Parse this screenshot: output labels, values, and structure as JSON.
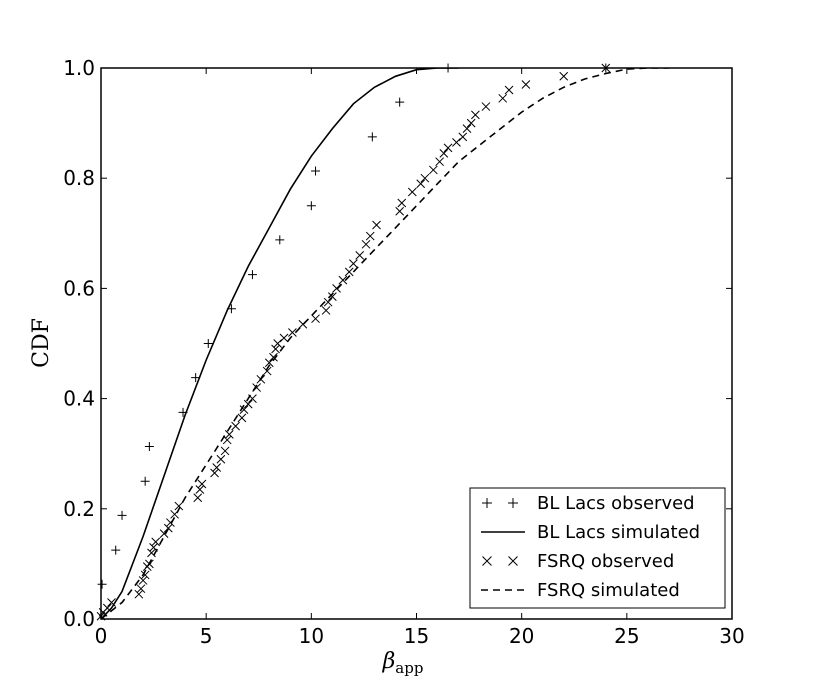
{
  "chart_data": {
    "type": "line",
    "title": "",
    "xlabel": "β",
    "xlabel_sub": "app",
    "ylabel": "CDF",
    "xlim": [
      0,
      30
    ],
    "ylim": [
      0,
      1
    ],
    "x_ticks": [
      0,
      5,
      10,
      15,
      20,
      25,
      30
    ],
    "y_ticks": [
      0.0,
      0.2,
      0.4,
      0.6,
      0.8,
      1.0
    ],
    "x_tick_labels": [
      "0",
      "5",
      "10",
      "15",
      "20",
      "25",
      "30"
    ],
    "y_tick_labels": [
      "0.0",
      "0.2",
      "0.4",
      "0.6",
      "0.8",
      "1.0"
    ],
    "grid": false,
    "legend_position": "bottom-right",
    "series": [
      {
        "name": "BL Lacs observed",
        "style": "plus-markers",
        "x": [
          0.05,
          0.7,
          1.0,
          2.1,
          2.3,
          3.9,
          4.5,
          5.1,
          6.2,
          7.2,
          8.5,
          10.0,
          10.2,
          12.9,
          14.2,
          16.5,
          24.0
        ],
        "y": [
          0.063,
          0.125,
          0.188,
          0.25,
          0.313,
          0.375,
          0.438,
          0.5,
          0.563,
          0.625,
          0.688,
          0.75,
          0.813,
          0.875,
          0.938,
          1.0,
          1.0
        ]
      },
      {
        "name": "BL Lacs simulated",
        "style": "solid",
        "x": [
          0,
          0.5,
          1,
          1.5,
          2,
          3,
          4,
          5,
          6,
          7,
          8,
          9,
          10,
          11,
          12,
          13,
          14,
          15,
          16,
          17
        ],
        "y": [
          0.0,
          0.02,
          0.05,
          0.1,
          0.15,
          0.26,
          0.37,
          0.47,
          0.56,
          0.64,
          0.71,
          0.78,
          0.84,
          0.89,
          0.935,
          0.965,
          0.985,
          0.997,
          1.0,
          1.0
        ]
      },
      {
        "name": "FSRQ observed",
        "style": "x-markers",
        "x": [
          0.0,
          0.1,
          0.3,
          0.5,
          1.8,
          1.9,
          2.0,
          2.1,
          2.2,
          2.3,
          2.4,
          2.5,
          2.6,
          3.0,
          3.2,
          3.3,
          3.5,
          3.7,
          4.6,
          4.7,
          4.8,
          5.4,
          5.5,
          5.7,
          5.9,
          6.0,
          6.1,
          6.4,
          6.7,
          6.8,
          7.0,
          7.2,
          7.4,
          7.6,
          7.9,
          8.0,
          8.2,
          8.3,
          8.4,
          8.7,
          9.1,
          9.6,
          10.2,
          10.7,
          10.8,
          11.0,
          11.2,
          11.5,
          11.8,
          12.0,
          12.3,
          12.6,
          12.8,
          13.1,
          14.2,
          14.3,
          14.8,
          15.2,
          15.4,
          15.8,
          16.1,
          16.3,
          16.5,
          16.9,
          17.2,
          17.4,
          17.6,
          17.8,
          18.3,
          19.1,
          19.4,
          20.2,
          22.0,
          24.0
        ],
        "y": [
          0.005,
          0.012,
          0.02,
          0.03,
          0.045,
          0.055,
          0.07,
          0.08,
          0.095,
          0.1,
          0.12,
          0.13,
          0.14,
          0.155,
          0.165,
          0.175,
          0.19,
          0.205,
          0.22,
          0.235,
          0.245,
          0.265,
          0.275,
          0.29,
          0.305,
          0.325,
          0.335,
          0.35,
          0.365,
          0.38,
          0.39,
          0.4,
          0.42,
          0.435,
          0.45,
          0.465,
          0.475,
          0.49,
          0.5,
          0.51,
          0.52,
          0.535,
          0.545,
          0.56,
          0.575,
          0.585,
          0.6,
          0.615,
          0.63,
          0.645,
          0.66,
          0.68,
          0.695,
          0.715,
          0.74,
          0.755,
          0.775,
          0.79,
          0.8,
          0.815,
          0.83,
          0.845,
          0.855,
          0.865,
          0.875,
          0.89,
          0.9,
          0.915,
          0.93,
          0.945,
          0.96,
          0.97,
          0.985,
          1.0
        ]
      },
      {
        "name": "FSRQ simulated",
        "style": "dashed",
        "x": [
          0,
          1,
          2,
          3,
          4,
          5,
          6,
          7,
          8,
          9,
          10,
          11,
          12,
          13,
          14,
          15,
          16,
          17,
          18,
          19,
          20,
          21,
          22,
          23,
          24,
          25,
          26,
          27
        ],
        "y": [
          0.0,
          0.03,
          0.08,
          0.15,
          0.22,
          0.28,
          0.34,
          0.4,
          0.46,
          0.51,
          0.55,
          0.59,
          0.63,
          0.67,
          0.71,
          0.75,
          0.79,
          0.83,
          0.86,
          0.89,
          0.92,
          0.945,
          0.965,
          0.98,
          0.99,
          0.998,
          1.0,
          1.0
        ]
      }
    ]
  }
}
